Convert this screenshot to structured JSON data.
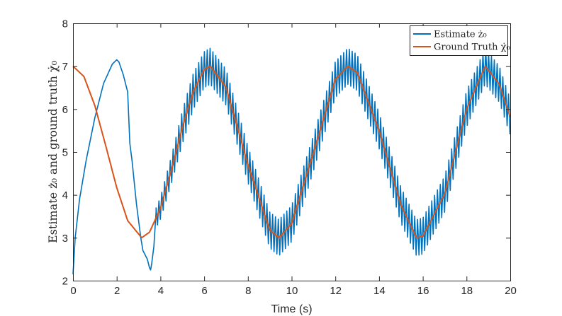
{
  "chart_data": {
    "type": "line",
    "xlabel": "Time (s)",
    "ylabel": "Estimate ż₀ and ground truth χ̇₀",
    "xlim": [
      0,
      20
    ],
    "ylim": [
      2,
      8
    ],
    "xticks": [
      0,
      2,
      4,
      6,
      8,
      10,
      12,
      14,
      16,
      18,
      20
    ],
    "yticks": [
      2,
      3,
      4,
      5,
      6,
      7,
      8
    ],
    "grid": false,
    "legend": "top-right",
    "series": [
      {
        "name": "Estimate ż₀",
        "color": "#0072BD",
        "x": [
          0,
          0.1,
          0.3,
          0.6,
          1.0,
          1.4,
          1.8,
          2.0,
          2.1,
          2.3,
          2.5,
          2.55,
          2.6,
          2.7,
          2.8,
          2.9,
          3.0,
          3.1,
          3.2,
          3.3,
          3.4,
          3.5,
          3.55,
          3.6,
          3.7,
          3.8
        ],
        "values": [
          2.15,
          3.0,
          3.9,
          4.8,
          5.8,
          6.6,
          7.05,
          7.15,
          7.1,
          6.8,
          6.4,
          5.8,
          5.2,
          4.8,
          4.3,
          3.8,
          3.4,
          3.0,
          2.7,
          2.6,
          2.5,
          2.3,
          2.25,
          2.4,
          2.8,
          3.6
        ],
        "oscillation": {
          "from_x": 3.8,
          "to_x": 20,
          "center": "follows Ground Truth",
          "amplitude_at_peaks": 0.42,
          "amplitude_at_troughs": 0.42,
          "period_s": 0.13
        }
      },
      {
        "name": "Ground Truth χ̇₀",
        "color": "#D95319",
        "x": [
          0,
          0.5,
          1.0,
          1.5,
          2.0,
          2.5,
          3.14,
          3.5,
          4.0,
          4.5,
          5.0,
          5.5,
          6.0,
          6.28,
          7.0,
          8.0,
          9.0,
          9.42,
          10.0,
          11.0,
          12.0,
          12.57,
          13.0,
          14.0,
          15.0,
          15.71,
          16.0,
          17.0,
          18.0,
          18.85,
          19.5,
          20.0
        ],
        "values": [
          7.0,
          6.76,
          6.08,
          5.14,
          4.17,
          3.4,
          3.0,
          3.13,
          3.69,
          4.58,
          5.57,
          6.41,
          6.92,
          7.0,
          6.51,
          4.71,
          3.18,
          3.0,
          3.33,
          4.98,
          6.69,
          7.0,
          6.85,
          5.5,
          3.76,
          3.0,
          3.04,
          4.02,
          6.0,
          7.0,
          6.58,
          5.81
        ]
      }
    ]
  }
}
